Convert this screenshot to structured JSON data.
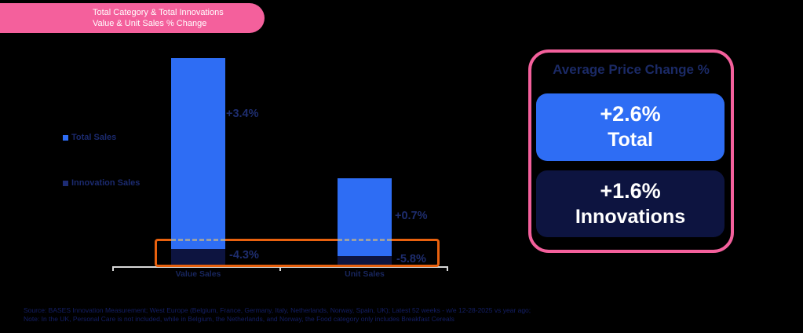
{
  "title_badge": {
    "line1": "Total Category & Total Innovations",
    "line2": "Value & Unit Sales % Change"
  },
  "legend": {
    "items": [
      {
        "label": "Total Sales",
        "color": "#2e6df4"
      },
      {
        "label": "Innovation Sales",
        "color": "#1d2c74"
      }
    ]
  },
  "chart_data": {
    "type": "bar",
    "title": "Total Category & Total Innovations Value & Unit Sales % Change",
    "categories": [
      "Value Sales",
      "Unit Sales"
    ],
    "series": [
      {
        "name": "Total Sales",
        "values": [
          3.4,
          0.7
        ],
        "labels": [
          "+3.4%",
          "+0.7%"
        ],
        "color": "#2e6df4"
      },
      {
        "name": "Innovation Sales",
        "values": [
          -4.3,
          -5.8
        ],
        "labels": [
          "-4.3%",
          "-5.8%"
        ],
        "color": "#0d1440"
      }
    ],
    "unit": "%",
    "xlabel": "",
    "ylabel": "",
    "grid": false,
    "legend_position": "left",
    "annotations": {
      "highlight_box": "orange box with dashed top edge highlighting innovation sales declines",
      "highlight_color": "#e9610e"
    }
  },
  "price_panel": {
    "title": "Average Price Change %",
    "border_color": "#f4609c",
    "cards": [
      {
        "value": "+2.6%",
        "label": "Total",
        "color": "#2e6df4"
      },
      {
        "value": "+1.6%",
        "label": "Innovations",
        "color": "#0d1440"
      }
    ]
  },
  "footer": {
    "source_line": "Source: BASES Innovation Measurement; West Europe (Belgium, France, Germany, Italy, Netherlands, Norway, Spain, UK); Latest 52 weeks - w/e 12-28-2025 vs year ago;",
    "note_line": "Note: In the UK, Personal Care is not included, while in Belgium, the Netherlands, and Norway, the Food category only includes Breakfast Cereals"
  },
  "colors": {
    "background": "#000000",
    "pink": "#f4609c",
    "blue": "#2e6df4",
    "navy": "#0d1440",
    "orange": "#e9610e",
    "label_text": "#1e2d6e",
    "axis": "#d8d8d8"
  }
}
